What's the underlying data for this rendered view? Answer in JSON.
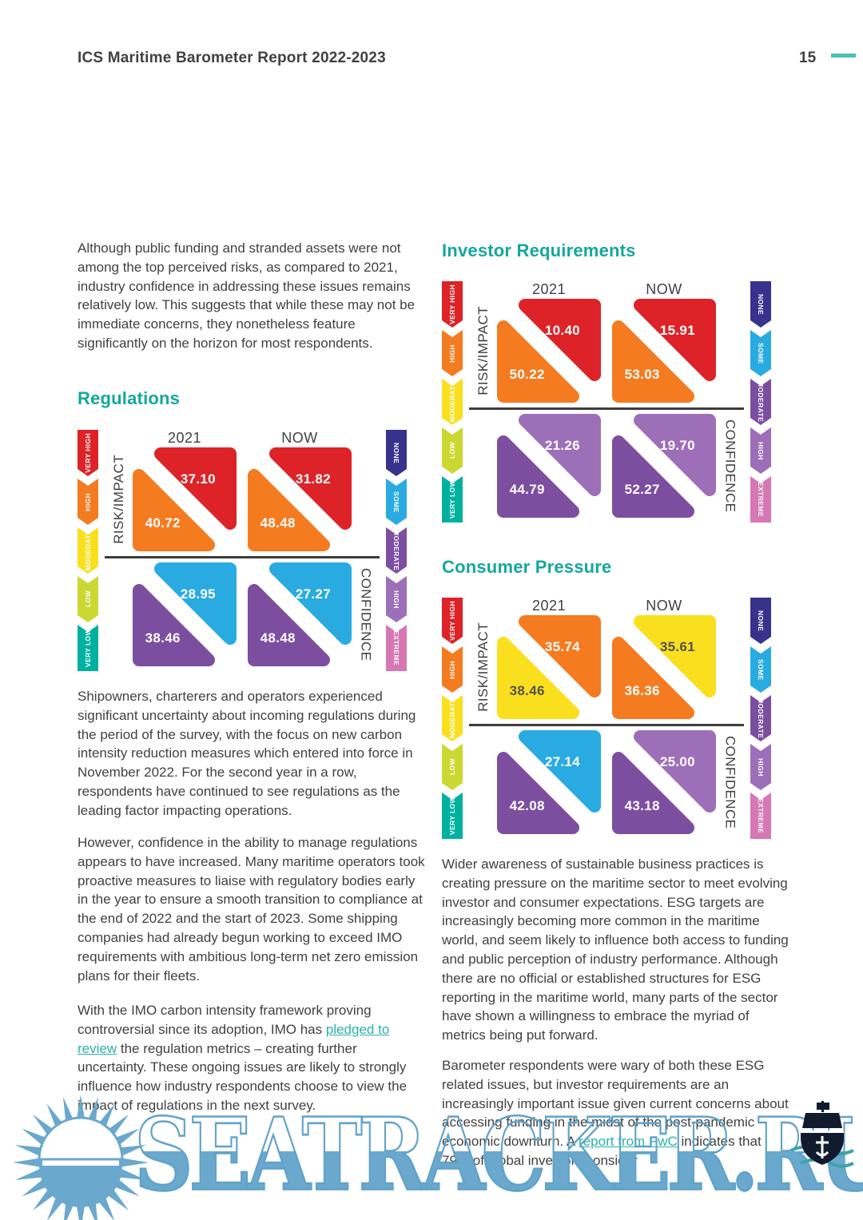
{
  "header": {
    "title": "ICS Maritime Barometer Report 2022-2023",
    "page_number": "15"
  },
  "colors": {
    "accent_teal": "#14a79e",
    "link_teal": "#2ab3a6",
    "dash_teal": "#49c0b6",
    "text_dark": "#414042",
    "divider_dark": "#3c3c3e",
    "value_dark_text": "#525254",
    "watermark_blue": "#6aa8cd",
    "ship_dark": "#101c2e",
    "wave_teal": "#3fa3a8",
    "palette": {
      "red": "#dd2327",
      "orange": "#f47b20",
      "yellow": "#fadf1e",
      "lime": "#cbd831",
      "teal": "#00b1a0",
      "indigo": "#37338c",
      "cyan": "#29abe2",
      "purple": "#7c4ea0",
      "light_purple": "#9d6fb8",
      "pink": "#d678b3",
      "white": "#ffffff"
    }
  },
  "axis_labels": {
    "left": "RISK/IMPACT",
    "right": "CONFIDENCE",
    "col1": "2021",
    "col2": "NOW"
  },
  "risk_scale": [
    {
      "label": "VERY HIGH",
      "color": "red"
    },
    {
      "label": "HIGH",
      "color": "orange"
    },
    {
      "label": "MODERATE",
      "color": "yellow"
    },
    {
      "label": "LOW",
      "color": "lime"
    },
    {
      "label": "VERY LOW",
      "color": "teal"
    }
  ],
  "confidence_scale": [
    {
      "label": "NONE",
      "color": "indigo"
    },
    {
      "label": "SOME",
      "color": "cyan"
    },
    {
      "label": "MODERATE",
      "color": "purple"
    },
    {
      "label": "HIGH",
      "color": "light_purple"
    },
    {
      "label": "EXTREME",
      "color": "pink"
    }
  ],
  "charts": [
    {
      "key": "regulations",
      "squares": [
        {
          "name": "risk-2021",
          "top": {
            "value": "37.10",
            "color": "red",
            "text": "white"
          },
          "bottom": {
            "value": "40.72",
            "color": "orange",
            "text": "white"
          }
        },
        {
          "name": "risk-now",
          "top": {
            "value": "31.82",
            "color": "red",
            "text": "white"
          },
          "bottom": {
            "value": "48.48",
            "color": "orange",
            "text": "white"
          }
        },
        {
          "name": "confidence-2021",
          "top": {
            "value": "28.95",
            "color": "cyan",
            "text": "white"
          },
          "bottom": {
            "value": "38.46",
            "color": "purple",
            "text": "white"
          }
        },
        {
          "name": "confidence-now",
          "top": {
            "value": "27.27",
            "color": "cyan",
            "text": "white"
          },
          "bottom": {
            "value": "48.48",
            "color": "purple",
            "text": "white"
          }
        }
      ]
    },
    {
      "key": "investor-requirements",
      "squares": [
        {
          "name": "risk-2021",
          "top": {
            "value": "10.40",
            "color": "red",
            "text": "white"
          },
          "bottom": {
            "value": "50.22",
            "color": "orange",
            "text": "white"
          }
        },
        {
          "name": "risk-now",
          "top": {
            "value": "15.91",
            "color": "red",
            "text": "white"
          },
          "bottom": {
            "value": "53.03",
            "color": "orange",
            "text": "white"
          }
        },
        {
          "name": "confidence-2021",
          "top": {
            "value": "21.26",
            "color": "light_purple",
            "text": "white"
          },
          "bottom": {
            "value": "44.79",
            "color": "purple",
            "text": "white"
          }
        },
        {
          "name": "confidence-now",
          "top": {
            "value": "19.70",
            "color": "light_purple",
            "text": "white"
          },
          "bottom": {
            "value": "52.27",
            "color": "purple",
            "text": "white"
          }
        }
      ]
    },
    {
      "key": "consumer-pressure",
      "squares": [
        {
          "name": "risk-2021",
          "top": {
            "value": "35.74",
            "color": "orange",
            "text": "white"
          },
          "bottom": {
            "value": "38.46",
            "color": "yellow",
            "text": "dark"
          }
        },
        {
          "name": "risk-now",
          "top": {
            "value": "35.61",
            "color": "yellow",
            "text": "dark"
          },
          "bottom": {
            "value": "36.36",
            "color": "orange",
            "text": "white"
          }
        },
        {
          "name": "confidence-2021",
          "top": {
            "value": "27.14",
            "color": "cyan",
            "text": "white"
          },
          "bottom": {
            "value": "42.08",
            "color": "purple",
            "text": "white"
          }
        },
        {
          "name": "confidence-now",
          "top": {
            "value": "25.00",
            "color": "light_purple",
            "text": "white"
          },
          "bottom": {
            "value": "43.18",
            "color": "purple",
            "text": "white"
          }
        }
      ]
    }
  ],
  "chart_data": [
    {
      "type": "triangle-matrix",
      "title": "Regulations",
      "categories": [
        "2021",
        "NOW"
      ],
      "risk_impact": {
        "2021": {
          "very_high": 37.1,
          "high": 40.72
        },
        "NOW": {
          "very_high": 31.82,
          "high": 48.48
        }
      },
      "confidence": {
        "2021": {
          "some": 28.95,
          "moderate": 38.46
        },
        "NOW": {
          "some": 27.27,
          "moderate": 48.48
        }
      }
    },
    {
      "type": "triangle-matrix",
      "title": "Investor Requirements",
      "categories": [
        "2021",
        "NOW"
      ],
      "risk_impact": {
        "2021": {
          "very_high": 10.4,
          "high": 50.22
        },
        "NOW": {
          "very_high": 15.91,
          "high": 53.03
        }
      },
      "confidence": {
        "2021": {
          "high": 21.26,
          "moderate": 44.79
        },
        "NOW": {
          "high": 19.7,
          "moderate": 52.27
        }
      }
    },
    {
      "type": "triangle-matrix",
      "title": "Consumer Pressure",
      "categories": [
        "2021",
        "NOW"
      ],
      "risk_impact": {
        "2021": {
          "high": 35.74,
          "moderate": 38.46
        },
        "NOW": {
          "moderate": 35.61,
          "high": 36.36
        }
      },
      "confidence": {
        "2021": {
          "some": 27.14,
          "moderate": 42.08
        },
        "NOW": {
          "high": 25.0,
          "moderate": 43.18
        }
      }
    }
  ],
  "left_column": {
    "p1": "Although public funding and stranded assets were not among the top perceived risks, as compared to 2021, industry confidence in addressing these issues remains relatively low. This suggests that while these may not be immediate concerns, they nonetheless feature significantly on the horizon for most respondents.",
    "regulations_heading": "Regulations",
    "p2": "Shipowners, charterers and operators experienced significant uncertainty about incoming regulations during the period of the survey, with the focus on new carbon intensity reduction measures which entered into force in November 2022. For the second year in a row, respondents have continued to see regulations as the leading factor impacting operations.",
    "p3": "However, confidence in the ability to manage regulations appears to have increased. Many maritime operators took proactive measures to liaise with regulatory bodies early in the year to ensure a smooth transition to compliance at the end of 2022 and the start of 2023. Some shipping companies had already begun working to exceed IMO requirements with ambitious long-term net zero emission plans for their fleets.",
    "p4_pre": "With the IMO carbon intensity framework proving controversial since its adoption, IMO has ",
    "p4_link": "pledged to review",
    "p4_post": " the regulation metrics – creating further uncertainty. These ongoing issues are likely to strongly influence how industry respondents choose to view the impact of regulations in the next survey."
  },
  "right_column": {
    "investor_heading": "Investor Requirements",
    "consumer_heading": "Consumer Pressure",
    "p1": "Wider awareness of sustainable business practices is creating pressure on the maritime sector to meet evolving investor and consumer expectations. ESG targets are increasingly becoming more common in the maritime world, and seem likely to influence both access to funding and public perception of industry performance. Although there are no official or established structures for ESG reporting in the maritime world, many parts of the sector have shown a willingness to embrace the myriad of metrics being put forward.",
    "p2_pre": "Barometer respondents were wary of both these ESG related issues, but investor requirements are an increasingly important issue given current concerns about accessing funding in the midst of the post-pandemic economic downturn. A ",
    "p2_link": "report from PwC",
    "p2_post": " indicates that 79% of global investors consider"
  },
  "watermark": {
    "text": "SEATRACKER.RU"
  }
}
